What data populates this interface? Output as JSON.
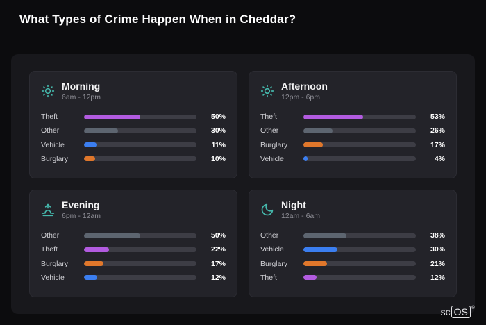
{
  "page": {
    "title": "What Types of Crime Happen When in Cheddar?"
  },
  "brand": {
    "prefix": "sc",
    "boxed": "OS",
    "reg": "®"
  },
  "colors": {
    "background": "#0c0c0e",
    "panel": "#18181c",
    "card": "#232329",
    "track": "#3d3d45",
    "accent_teal": "#45b8ac",
    "theft_purple": "#b25be0",
    "other_gray": "#5d6570",
    "vehicle_blue": "#3b7ef0",
    "burglary_orange": "#e0772b"
  },
  "chart_data": [
    {
      "type": "bar",
      "orientation": "horizontal",
      "title": "Morning",
      "subtitle": "6am - 12pm",
      "icon": "sun-icon",
      "categories": [
        "Theft",
        "Other",
        "Vehicle",
        "Burglary"
      ],
      "values": [
        50,
        30,
        11,
        10
      ],
      "value_labels": [
        "50%",
        "30%",
        "11%",
        "10%"
      ],
      "bar_colors": [
        "#b25be0",
        "#5d6570",
        "#3b7ef0",
        "#e0772b"
      ],
      "xlim": [
        0,
        100
      ]
    },
    {
      "type": "bar",
      "orientation": "horizontal",
      "title": "Afternoon",
      "subtitle": "12pm - 6pm",
      "icon": "sun-icon",
      "categories": [
        "Theft",
        "Other",
        "Burglary",
        "Vehicle"
      ],
      "values": [
        53,
        26,
        17,
        4
      ],
      "value_labels": [
        "53%",
        "26%",
        "17%",
        "4%"
      ],
      "bar_colors": [
        "#b25be0",
        "#5d6570",
        "#e0772b",
        "#3b7ef0"
      ],
      "xlim": [
        0,
        100
      ]
    },
    {
      "type": "bar",
      "orientation": "horizontal",
      "title": "Evening",
      "subtitle": "6pm - 12am",
      "icon": "sunrise-icon",
      "categories": [
        "Other",
        "Theft",
        "Burglary",
        "Vehicle"
      ],
      "values": [
        50,
        22,
        17,
        12
      ],
      "value_labels": [
        "50%",
        "22%",
        "17%",
        "12%"
      ],
      "bar_colors": [
        "#5d6570",
        "#b25be0",
        "#e0772b",
        "#3b7ef0"
      ],
      "xlim": [
        0,
        100
      ]
    },
    {
      "type": "bar",
      "orientation": "horizontal",
      "title": "Night",
      "subtitle": "12am - 6am",
      "icon": "moon-icon",
      "categories": [
        "Other",
        "Vehicle",
        "Burglary",
        "Theft"
      ],
      "values": [
        38,
        30,
        21,
        12
      ],
      "value_labels": [
        "38%",
        "30%",
        "21%",
        "12%"
      ],
      "bar_colors": [
        "#5d6570",
        "#3b7ef0",
        "#e0772b",
        "#b25be0"
      ],
      "xlim": [
        0,
        100
      ]
    }
  ]
}
